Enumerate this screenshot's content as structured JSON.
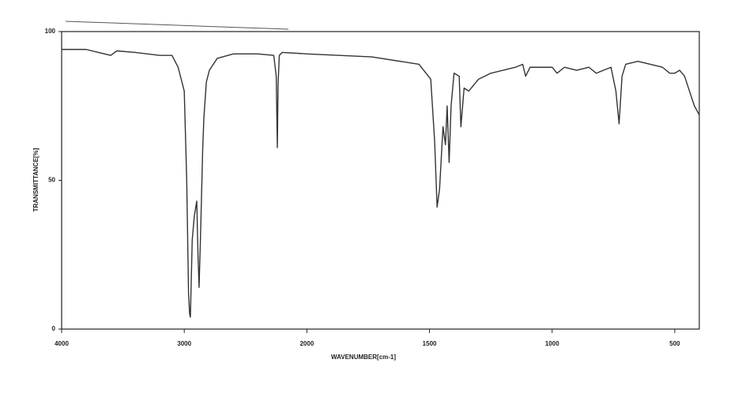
{
  "chart_data": {
    "type": "line",
    "x_label": "WAVENUMBER[cm-1]",
    "y_label": "TRANSMITTANCE[%]",
    "x": [
      4000,
      3800,
      3700,
      3600,
      3550,
      3400,
      3200,
      3100,
      3050,
      3000,
      2980,
      2965,
      2956,
      2950,
      2935,
      2918,
      2898,
      2888,
      2879,
      2865,
      2850,
      2840,
      2820,
      2795,
      2731,
      2600,
      2400,
      2270,
      2250,
      2241,
      2235,
      2225,
      2200,
      2000,
      1736,
      1543,
      1495,
      1479,
      1469,
      1459,
      1445,
      1435,
      1428,
      1420,
      1412,
      1400,
      1379,
      1372,
      1359,
      1340,
      1300,
      1250,
      1200,
      1150,
      1120,
      1108,
      1090,
      1050,
      1000,
      980,
      950,
      900,
      850,
      820,
      760,
      740,
      727,
      715,
      700,
      650,
      600,
      550,
      520,
      500,
      480,
      460,
      420,
      400
    ],
    "values": [
      94,
      94,
      93,
      92,
      93.5,
      93,
      92,
      92,
      88,
      80,
      50,
      12,
      5,
      4,
      30,
      38,
      43,
      25,
      14,
      35,
      60,
      71,
      83,
      87,
      91,
      92.5,
      92.5,
      92,
      85,
      61,
      82,
      92,
      93,
      92.5,
      91.5,
      89,
      84,
      63,
      41,
      47,
      68,
      62,
      75,
      56,
      75,
      86,
      85,
      68,
      81,
      80,
      84,
      86,
      87,
      88,
      89,
      85,
      88,
      88,
      88,
      86,
      88,
      87,
      88,
      86,
      88,
      80,
      69,
      85,
      89,
      90,
      89,
      88,
      86,
      86,
      87,
      85,
      75,
      72
    ],
    "color": "#333333",
    "xlim": [
      4000,
      400
    ],
    "x_scale_change": {
      "at": 2000,
      "factor": 2
    },
    "xticks": [
      4000,
      3000,
      2000,
      1500,
      1000,
      500
    ],
    "ylim": [
      0,
      100
    ],
    "yticks": [
      0,
      50,
      100
    ]
  }
}
